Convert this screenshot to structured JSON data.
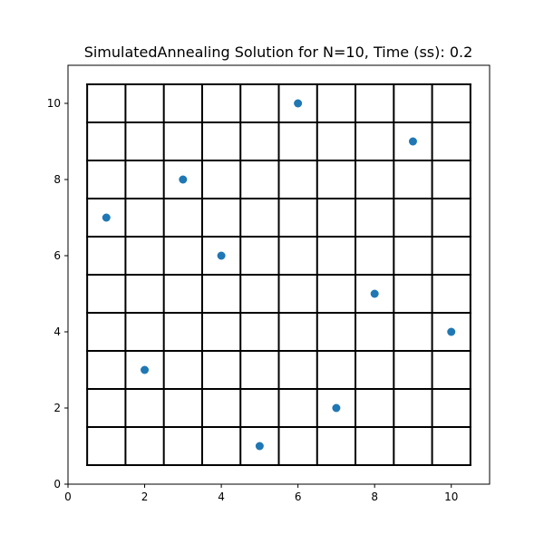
{
  "chart_data": {
    "type": "scatter",
    "title": "SimulatedAnnealing Solution for N=10, Time (ss): 0.2",
    "xlabel": "",
    "ylabel": "",
    "xlim": [
      0,
      11
    ],
    "ylim": [
      0,
      11
    ],
    "xticks": [
      0,
      2,
      4,
      6,
      8,
      10
    ],
    "yticks": [
      0,
      2,
      4,
      6,
      8,
      10
    ],
    "board": {
      "n": 10,
      "from": 0.5,
      "to": 10.5
    },
    "grid": true,
    "point_color": "#1f77b4",
    "points": [
      {
        "x": 1,
        "y": 7
      },
      {
        "x": 2,
        "y": 3
      },
      {
        "x": 3,
        "y": 8
      },
      {
        "x": 4,
        "y": 6
      },
      {
        "x": 5,
        "y": 1
      },
      {
        "x": 6,
        "y": 10
      },
      {
        "x": 7,
        "y": 2
      },
      {
        "x": 8,
        "y": 5
      },
      {
        "x": 9,
        "y": 9
      },
      {
        "x": 10,
        "y": 4
      }
    ]
  }
}
